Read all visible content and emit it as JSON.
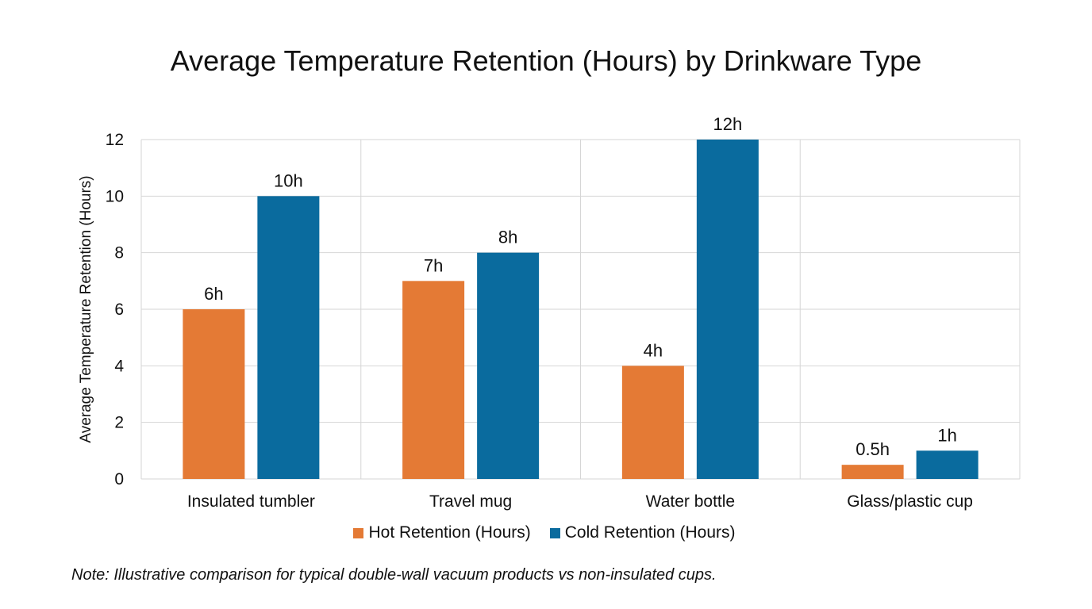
{
  "chart_data": {
    "type": "bar",
    "title": "Average Temperature Retention (Hours) by Drinkware Type",
    "xlabel": "",
    "ylabel": "Average Temperature Retention (Hours)",
    "ylim": [
      0,
      12
    ],
    "yticks": [
      "0",
      "2",
      "4",
      "6",
      "8",
      "10",
      "12"
    ],
    "grid": true,
    "legend_position": "bottom",
    "categories": [
      "Insulated tumbler",
      "Travel mug",
      "Water bottle",
      "Glass/plastic cup"
    ],
    "series": [
      {
        "name": "Hot Retention (Hours)",
        "color": "#E47A35",
        "values": [
          6,
          7,
          4,
          0.5
        ],
        "labels": [
          "6h",
          "7h",
          "4h",
          "0.5h"
        ]
      },
      {
        "name": "Cold Retention (Hours)",
        "color": "#0A6B9E",
        "values": [
          10,
          8,
          12,
          1
        ],
        "labels": [
          "10h",
          "8h",
          "12h",
          "1h"
        ]
      }
    ],
    "note": "Note: Illustrative comparison for typical double-wall vacuum products vs non-insulated cups."
  }
}
